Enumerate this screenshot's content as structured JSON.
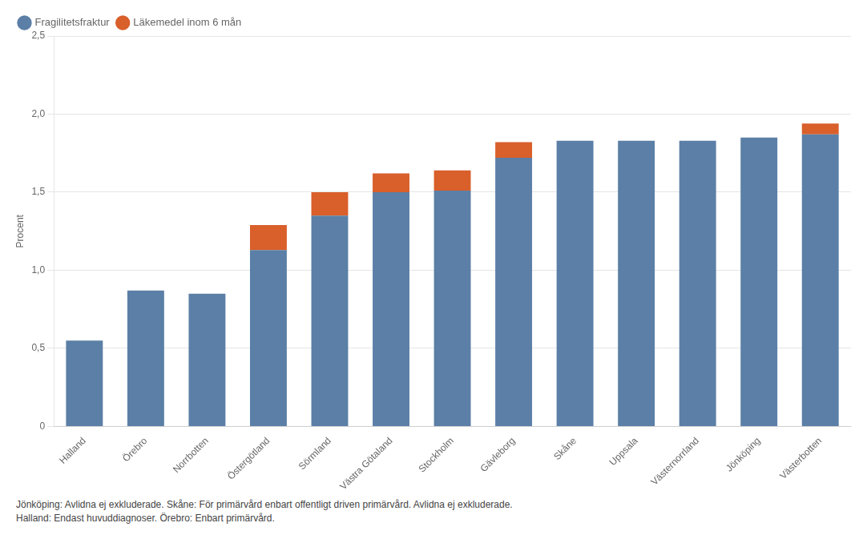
{
  "chart_data": {
    "type": "bar",
    "stacked": true,
    "ylabel": "Procent",
    "categories": [
      "Halland",
      "Örebro",
      "Norrbotten",
      "Östergötland",
      "Sörmland",
      "Västra Götaland",
      "Stockholm",
      "Gävleborg",
      "Skåne",
      "Uppsala",
      "Västernorrland",
      "Jönköping",
      "Västerbotten"
    ],
    "series": [
      {
        "name": "Fragilitetsfraktur",
        "color": "#5b7fa6",
        "values": [
          0.55,
          0.87,
          0.85,
          1.13,
          1.35,
          1.5,
          1.51,
          1.72,
          1.83,
          1.83,
          1.83,
          1.85,
          1.87
        ]
      },
      {
        "name": "Läkemedel inom 6 mån",
        "color": "#d95f2b",
        "values": [
          0.0,
          0.0,
          0.0,
          0.16,
          0.15,
          0.12,
          0.13,
          0.1,
          0.0,
          0.0,
          0.0,
          0.0,
          0.07
        ]
      }
    ],
    "ylim": [
      0,
      2.5
    ],
    "yticks": [
      0,
      {
        "value": 0.5,
        "label": "0,5"
      },
      {
        "value": 1.0,
        "label": "1,0"
      },
      {
        "value": 1.5,
        "label": "1,5"
      },
      {
        "value": 2.0,
        "label": "2,0"
      },
      {
        "value": 2.5,
        "label": "2,5"
      }
    ],
    "grid": true,
    "legend": "top",
    "annotations": [
      "Jönköping: Avlidna ej exkluderade.   Skåne: För primärvård enbart offentligt driven primärvård. Avlidna ej exkluderade.",
      "Halland: Endast huvuddiagnoser.   Örebro: Enbart primärvård."
    ]
  }
}
